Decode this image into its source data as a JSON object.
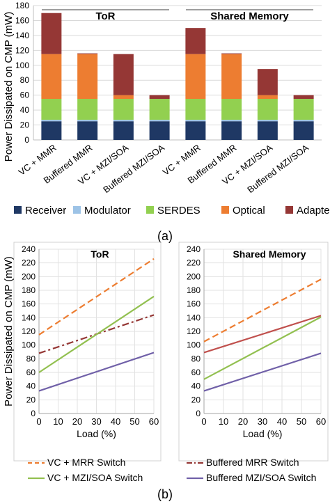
{
  "chart_data": [
    {
      "type": "bar",
      "stacked": true,
      "ylabel": "Power Dissipated on CMP (mW)",
      "ylim": [
        0,
        180
      ],
      "yticks": [
        "0",
        "20",
        "40",
        "60",
        "80",
        "100",
        "120",
        "140",
        "160",
        "180"
      ],
      "grid": true,
      "groups": [
        {
          "label": "ToR"
        },
        {
          "label": "Shared Memory"
        }
      ],
      "categories": [
        "VC + MMR",
        "Buffered MMR",
        "VC + MZI/SOA",
        "Buffered MZI/SOA",
        "VC + MMR",
        "Buffered MMR",
        "VC + MZI/SOA",
        "Buffered MZI/SOA"
      ],
      "series": [
        {
          "name": "Receiver",
          "color": "#1f3864",
          "values": [
            25,
            25,
            25,
            25,
            25,
            25,
            25,
            25
          ]
        },
        {
          "name": "Modulator",
          "color": "#9dc3e6",
          "values": [
            2,
            2,
            2,
            2,
            2,
            2,
            2,
            2
          ]
        },
        {
          "name": "SERDES",
          "color": "#92d050",
          "values": [
            28,
            28,
            28,
            28,
            28,
            28,
            28,
            28
          ]
        },
        {
          "name": "Optical",
          "color": "#ed7d31",
          "values": [
            60,
            60,
            5,
            0,
            60,
            60,
            5,
            0
          ]
        },
        {
          "name": "Adapter",
          "color": "#953735",
          "values": [
            55,
            1,
            55,
            5,
            35,
            1,
            35,
            5
          ]
        }
      ],
      "legend_position": "bottom",
      "caption": "(a)"
    },
    {
      "type": "line",
      "title": "ToR",
      "ylabel": "Power Dissipated on CMP (mW)",
      "xlabel": "Load (%)",
      "xlim": [
        0,
        60
      ],
      "ylim": [
        0,
        240
      ],
      "xticks": [
        "0",
        "10",
        "20",
        "30",
        "40",
        "50",
        "60"
      ],
      "yticks": [
        "0",
        "20",
        "40",
        "60",
        "80",
        "100",
        "120",
        "140",
        "160",
        "180",
        "200",
        "220",
        "240"
      ],
      "grid": true,
      "series": [
        {
          "name": "VC + MRR Switch",
          "color": "#ed7d31",
          "dash": "dash",
          "x": [
            0,
            60
          ],
          "y": [
            115,
            226
          ]
        },
        {
          "name": "Buffered MRR Switch",
          "color": "#953735",
          "dash": "dashdot",
          "x": [
            0,
            60
          ],
          "y": [
            88,
            144
          ]
        },
        {
          "name": "VC + MZI/SOA Switch",
          "color": "#92c050",
          "dash": "solid",
          "x": [
            0,
            60
          ],
          "y": [
            60,
            171
          ]
        },
        {
          "name": "Buffered MZI/SOA Switch",
          "color": "#7060a8",
          "dash": "solid",
          "x": [
            0,
            60
          ],
          "y": [
            33,
            89
          ]
        }
      ]
    },
    {
      "type": "line",
      "title": "Shared Memory",
      "xlabel": "Load (%)",
      "xlim": [
        0,
        60
      ],
      "ylim": [
        0,
        240
      ],
      "xticks": [
        "0",
        "10",
        "20",
        "30",
        "40",
        "50",
        "60"
      ],
      "yticks": [
        "0",
        "20",
        "40",
        "60",
        "80",
        "100",
        "120",
        "140",
        "160",
        "180",
        "200",
        "220",
        "240"
      ],
      "grid": true,
      "series": [
        {
          "name": "VC + MRR Switch",
          "color": "#ed7d31",
          "dash": "dash",
          "x": [
            0,
            60
          ],
          "y": [
            105,
            196
          ]
        },
        {
          "name": "Buffered MRR Switch",
          "color": "#c0504d",
          "dash": "solid",
          "x": [
            0,
            60
          ],
          "y": [
            89,
            143
          ]
        },
        {
          "name": "VC + MZI/SOA Switch",
          "color": "#92c050",
          "dash": "solid",
          "x": [
            0,
            60
          ],
          "y": [
            50,
            141
          ]
        },
        {
          "name": "Buffered MZI/SOA Switch",
          "color": "#7060a8",
          "dash": "solid",
          "x": [
            0,
            60
          ],
          "y": [
            33,
            88
          ]
        }
      ]
    }
  ],
  "line_legend": [
    {
      "label": "VC + MRR Switch",
      "color": "#ed7d31",
      "dash": "dash"
    },
    {
      "label": "Buffered MRR Switch",
      "color": "#953735",
      "dash": "dashdot"
    },
    {
      "label": "VC + MZI/SOA Switch",
      "color": "#92c050",
      "dash": "solid"
    },
    {
      "label": "Buffered MZI/SOA Switch",
      "color": "#7060a8",
      "dash": "solid"
    }
  ],
  "caption_b": "(b)"
}
